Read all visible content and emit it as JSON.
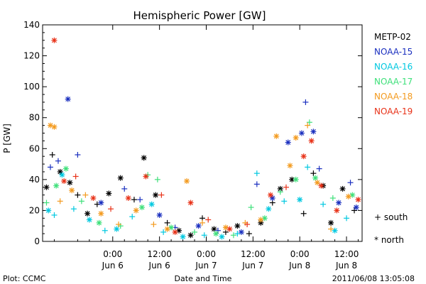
{
  "chart_data": {
    "type": "scatter",
    "title": "Hemispheric Power [GW]",
    "ylabel": "P [GW]",
    "xlabel": "Date and Time",
    "ylim": [
      0,
      140
    ],
    "yticks": [
      0,
      20,
      40,
      60,
      80,
      100,
      120,
      140
    ],
    "xlim": [
      "2011-06-05 06:00",
      "2011-06-08 16:00"
    ],
    "xticks": [
      {
        "t": "2011-06-06 00:00",
        "line1": "0:00",
        "line2": "Jun 6"
      },
      {
        "t": "2011-06-06 12:00",
        "line1": "12:00",
        "line2": "Jun 6"
      },
      {
        "t": "2011-06-07 00:00",
        "line1": "0:00",
        "line2": "Jun 7"
      },
      {
        "t": "2011-06-07 12:00",
        "line1": "12:00",
        "line2": "Jun 7"
      },
      {
        "t": "2011-06-08 00:00",
        "line1": "0:00",
        "line2": "Jun 8"
      },
      {
        "t": "2011-06-08 12:00",
        "line1": "12:00",
        "line2": "Jun 8"
      }
    ],
    "legend_position": "right",
    "marker_legend": [
      {
        "symbol": "+",
        "label": "south"
      },
      {
        "symbol": "*",
        "label": "north"
      }
    ],
    "series": [
      {
        "name": "METP-02",
        "color": "#000000",
        "points": [
          {
            "x": "2011-06-05 07:00",
            "y": 35,
            "m": "*"
          },
          {
            "x": "2011-06-05 08:30",
            "y": 56,
            "m": "+"
          },
          {
            "x": "2011-06-05 10:30",
            "y": 45,
            "m": "*"
          },
          {
            "x": "2011-06-05 13:00",
            "y": 38,
            "m": "*"
          },
          {
            "x": "2011-06-05 15:00",
            "y": 30,
            "m": "+"
          },
          {
            "x": "2011-06-05 17:30",
            "y": 18,
            "m": "*"
          },
          {
            "x": "2011-06-05 20:00",
            "y": 24,
            "m": "+"
          },
          {
            "x": "2011-06-05 23:00",
            "y": 31,
            "m": "*"
          },
          {
            "x": "2011-06-06 02:00",
            "y": 41,
            "m": "*"
          },
          {
            "x": "2011-06-06 05:30",
            "y": 27,
            "m": "+"
          },
          {
            "x": "2011-06-06 08:00",
            "y": 54,
            "m": "*"
          },
          {
            "x": "2011-06-06 11:00",
            "y": 30,
            "m": "*"
          },
          {
            "x": "2011-06-06 14:00",
            "y": 12,
            "m": "+"
          },
          {
            "x": "2011-06-06 17:00",
            "y": 7,
            "m": "*"
          },
          {
            "x": "2011-06-06 20:00",
            "y": 4,
            "m": "*"
          },
          {
            "x": "2011-06-06 23:00",
            "y": 15,
            "m": "+"
          },
          {
            "x": "2011-06-07 02:00",
            "y": 8,
            "m": "*"
          },
          {
            "x": "2011-06-07 05:00",
            "y": 6,
            "m": "+"
          },
          {
            "x": "2011-06-07 08:00",
            "y": 10,
            "m": "*"
          },
          {
            "x": "2011-06-07 11:00",
            "y": 5,
            "m": "+"
          },
          {
            "x": "2011-06-07 14:00",
            "y": 12,
            "m": "*"
          },
          {
            "x": "2011-06-07 17:00",
            "y": 25,
            "m": "+"
          },
          {
            "x": "2011-06-07 19:00",
            "y": 34,
            "m": "*"
          },
          {
            "x": "2011-06-07 22:00",
            "y": 40,
            "m": "*"
          },
          {
            "x": "2011-06-08 01:00",
            "y": 18,
            "m": "+"
          },
          {
            "x": "2011-06-08 03:30",
            "y": 44,
            "m": "+"
          },
          {
            "x": "2011-06-08 06:00",
            "y": 36,
            "m": "*"
          },
          {
            "x": "2011-06-08 08:00",
            "y": 12,
            "m": "*"
          },
          {
            "x": "2011-06-08 11:00",
            "y": 34,
            "m": "*"
          },
          {
            "x": "2011-06-08 14:00",
            "y": 20,
            "m": "+"
          }
        ]
      },
      {
        "name": "NOAA-15",
        "color": "#1a2fbf",
        "points": [
          {
            "x": "2011-06-05 08:00",
            "y": 48,
            "m": "+"
          },
          {
            "x": "2011-06-05 10:00",
            "y": 52,
            "m": "+"
          },
          {
            "x": "2011-06-05 12:30",
            "y": 92,
            "m": "*"
          },
          {
            "x": "2011-06-05 15:00",
            "y": 56,
            "m": "+"
          },
          {
            "x": "2011-06-05 21:00",
            "y": 25,
            "m": "*"
          },
          {
            "x": "2011-06-06 03:00",
            "y": 34,
            "m": "+"
          },
          {
            "x": "2011-06-06 07:00",
            "y": 27,
            "m": "+"
          },
          {
            "x": "2011-06-06 12:00",
            "y": 17,
            "m": "*"
          },
          {
            "x": "2011-06-06 16:00",
            "y": 9,
            "m": "+"
          },
          {
            "x": "2011-06-06 22:00",
            "y": 10,
            "m": "*"
          },
          {
            "x": "2011-06-07 03:00",
            "y": 7,
            "m": "+"
          },
          {
            "x": "2011-06-07 09:00",
            "y": 6,
            "m": "*"
          },
          {
            "x": "2011-06-07 13:00",
            "y": 37,
            "m": "+"
          },
          {
            "x": "2011-06-07 17:00",
            "y": 28,
            "m": "*"
          },
          {
            "x": "2011-06-07 21:00",
            "y": 64,
            "m": "*"
          },
          {
            "x": "2011-06-08 00:30",
            "y": 70,
            "m": "*"
          },
          {
            "x": "2011-06-08 01:30",
            "y": 90,
            "m": "+"
          },
          {
            "x": "2011-06-08 03:30",
            "y": 71,
            "m": "*"
          },
          {
            "x": "2011-06-08 05:00",
            "y": 47,
            "m": "+"
          },
          {
            "x": "2011-06-08 10:00",
            "y": 25,
            "m": "*"
          },
          {
            "x": "2011-06-08 13:00",
            "y": 38,
            "m": "+"
          },
          {
            "x": "2011-06-08 14:30",
            "y": 22,
            "m": "*"
          }
        ]
      },
      {
        "name": "NOAA-16",
        "color": "#00c8e0",
        "points": [
          {
            "x": "2011-06-05 07:30",
            "y": 20,
            "m": "*"
          },
          {
            "x": "2011-06-05 09:00",
            "y": 17,
            "m": "+"
          },
          {
            "x": "2011-06-05 11:00",
            "y": 43,
            "m": "*"
          },
          {
            "x": "2011-06-05 14:00",
            "y": 21,
            "m": "+"
          },
          {
            "x": "2011-06-05 18:00",
            "y": 14,
            "m": "*"
          },
          {
            "x": "2011-06-05 22:00",
            "y": 7,
            "m": "+"
          },
          {
            "x": "2011-06-06 01:00",
            "y": 8,
            "m": "*"
          },
          {
            "x": "2011-06-06 05:00",
            "y": 16,
            "m": "+"
          },
          {
            "x": "2011-06-06 10:00",
            "y": 24,
            "m": "*"
          },
          {
            "x": "2011-06-06 13:00",
            "y": 6,
            "m": "+"
          },
          {
            "x": "2011-06-06 18:00",
            "y": 3,
            "m": "*"
          },
          {
            "x": "2011-06-06 23:30",
            "y": 4,
            "m": "+"
          },
          {
            "x": "2011-06-07 04:00",
            "y": 3,
            "m": "*"
          },
          {
            "x": "2011-06-07 08:00",
            "y": 5,
            "m": "+"
          },
          {
            "x": "2011-06-07 13:00",
            "y": 44,
            "m": "+"
          },
          {
            "x": "2011-06-07 16:00",
            "y": 21,
            "m": "*"
          },
          {
            "x": "2011-06-07 20:00",
            "y": 26,
            "m": "+"
          },
          {
            "x": "2011-06-08 00:00",
            "y": 27,
            "m": "*"
          },
          {
            "x": "2011-06-08 02:00",
            "y": 48,
            "m": "+"
          },
          {
            "x": "2011-06-08 06:00",
            "y": 24,
            "m": "+"
          },
          {
            "x": "2011-06-08 09:00",
            "y": 7,
            "m": "*"
          },
          {
            "x": "2011-06-08 12:00",
            "y": 15,
            "m": "+"
          }
        ]
      },
      {
        "name": "NOAA-17",
        "color": "#3ee07a",
        "points": [
          {
            "x": "2011-06-05 07:00",
            "y": 25,
            "m": "+"
          },
          {
            "x": "2011-06-05 09:30",
            "y": 36,
            "m": "*"
          },
          {
            "x": "2011-06-05 12:00",
            "y": 47,
            "m": "*"
          },
          {
            "x": "2011-06-05 16:00",
            "y": 26,
            "m": "+"
          },
          {
            "x": "2011-06-05 20:30",
            "y": 12,
            "m": "*"
          },
          {
            "x": "2011-06-06 02:00",
            "y": 10,
            "m": "+"
          },
          {
            "x": "2011-06-06 07:30",
            "y": 22,
            "m": "*"
          },
          {
            "x": "2011-06-06 09:00",
            "y": 43,
            "m": "+"
          },
          {
            "x": "2011-06-06 11:30",
            "y": 40,
            "m": "+"
          },
          {
            "x": "2011-06-06 15:00",
            "y": 9,
            "m": "*"
          },
          {
            "x": "2011-06-06 21:00",
            "y": 6,
            "m": "+"
          },
          {
            "x": "2011-06-07 02:30",
            "y": 5,
            "m": "*"
          },
          {
            "x": "2011-06-07 07:00",
            "y": 4,
            "m": "+"
          },
          {
            "x": "2011-06-07 11:30",
            "y": 22,
            "m": "+"
          },
          {
            "x": "2011-06-07 15:00",
            "y": 15,
            "m": "*"
          },
          {
            "x": "2011-06-07 19:00",
            "y": 32,
            "m": "+"
          },
          {
            "x": "2011-06-07 23:00",
            "y": 40,
            "m": "*"
          },
          {
            "x": "2011-06-08 02:30",
            "y": 77,
            "m": "+"
          },
          {
            "x": "2011-06-08 04:00",
            "y": 41,
            "m": "*"
          },
          {
            "x": "2011-06-08 08:30",
            "y": 28,
            "m": "+"
          },
          {
            "x": "2011-06-08 13:30",
            "y": 30,
            "m": "*"
          }
        ]
      },
      {
        "name": "NOAA-18",
        "color": "#f39a1e",
        "points": [
          {
            "x": "2011-06-05 08:00",
            "y": 75,
            "m": "*"
          },
          {
            "x": "2011-06-05 09:00",
            "y": 74,
            "m": "*"
          },
          {
            "x": "2011-06-05 10:30",
            "y": 26,
            "m": "+"
          },
          {
            "x": "2011-06-05 13:30",
            "y": 33,
            "m": "*"
          },
          {
            "x": "2011-06-05 17:00",
            "y": 30,
            "m": "+"
          },
          {
            "x": "2011-06-05 21:00",
            "y": 18,
            "m": "*"
          },
          {
            "x": "2011-06-06 01:30",
            "y": 11,
            "m": "+"
          },
          {
            "x": "2011-06-06 06:00",
            "y": 20,
            "m": "*"
          },
          {
            "x": "2011-06-06 10:30",
            "y": 11,
            "m": "+"
          },
          {
            "x": "2011-06-06 14:00",
            "y": 8,
            "m": "*"
          },
          {
            "x": "2011-06-06 19:00",
            "y": 39,
            "m": "*"
          },
          {
            "x": "2011-06-06 23:00",
            "y": 12,
            "m": "+"
          },
          {
            "x": "2011-06-07 05:00",
            "y": 9,
            "m": "*"
          },
          {
            "x": "2011-06-07 10:00",
            "y": 12,
            "m": "+"
          },
          {
            "x": "2011-06-07 14:00",
            "y": 14,
            "m": "*"
          },
          {
            "x": "2011-06-07 18:00",
            "y": 68,
            "m": "*"
          },
          {
            "x": "2011-06-07 21:30",
            "y": 49,
            "m": "*"
          },
          {
            "x": "2011-06-07 23:00",
            "y": 67,
            "m": "*"
          },
          {
            "x": "2011-06-08 02:00",
            "y": 75,
            "m": "+"
          },
          {
            "x": "2011-06-08 04:30",
            "y": 38,
            "m": "*"
          },
          {
            "x": "2011-06-08 08:00",
            "y": 8,
            "m": "+"
          },
          {
            "x": "2011-06-08 12:30",
            "y": 29,
            "m": "*"
          }
        ]
      },
      {
        "name": "NOAA-19",
        "color": "#e83218",
        "points": [
          {
            "x": "2011-06-05 09:00",
            "y": 130,
            "m": "*"
          },
          {
            "x": "2011-06-05 11:30",
            "y": 39,
            "m": "*"
          },
          {
            "x": "2011-06-05 14:30",
            "y": 42,
            "m": "+"
          },
          {
            "x": "2011-06-05 19:00",
            "y": 28,
            "m": "*"
          },
          {
            "x": "2011-06-05 23:30",
            "y": 21,
            "m": "+"
          },
          {
            "x": "2011-06-06 04:00",
            "y": 28,
            "m": "*"
          },
          {
            "x": "2011-06-06 08:30",
            "y": 42,
            "m": "*"
          },
          {
            "x": "2011-06-06 12:30",
            "y": 30,
            "m": "+"
          },
          {
            "x": "2011-06-06 16:00",
            "y": 6,
            "m": "*"
          },
          {
            "x": "2011-06-06 20:00",
            "y": 25,
            "m": "*"
          },
          {
            "x": "2011-06-07 00:30",
            "y": 14,
            "m": "+"
          },
          {
            "x": "2011-06-07 06:00",
            "y": 8,
            "m": "*"
          },
          {
            "x": "2011-06-07 10:30",
            "y": 11,
            "m": "+"
          },
          {
            "x": "2011-06-07 16:30",
            "y": 30,
            "m": "*"
          },
          {
            "x": "2011-06-07 20:30",
            "y": 35,
            "m": "+"
          },
          {
            "x": "2011-06-08 01:00",
            "y": 55,
            "m": "*"
          },
          {
            "x": "2011-06-08 03:00",
            "y": 65,
            "m": "*"
          },
          {
            "x": "2011-06-08 05:30",
            "y": 36,
            "m": "*"
          },
          {
            "x": "2011-06-08 09:30",
            "y": 20,
            "m": "*"
          },
          {
            "x": "2011-06-08 15:00",
            "y": 27,
            "m": "*"
          }
        ]
      }
    ]
  },
  "footer": {
    "left": "Plot: CCMC",
    "right": "2011/06/08 13:05:08"
  }
}
